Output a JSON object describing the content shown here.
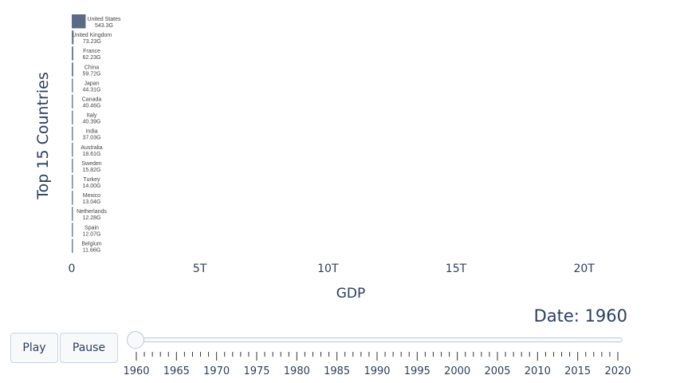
{
  "chart_data": {
    "type": "bar",
    "orientation": "horizontal",
    "ylabel": "Top 15 Countries",
    "xlabel": "GDP",
    "x_ticks": [
      "0",
      "5T",
      "10T",
      "15T",
      "20T"
    ],
    "x_tick_values": [
      0,
      5000,
      10000,
      15000,
      20000
    ],
    "xlim": [
      0,
      21100
    ],
    "value_unit": "billions USD",
    "categories": [
      "United States",
      "United Kingdom",
      "France",
      "China",
      "Japan",
      "Canada",
      "Italy",
      "India",
      "Australia",
      "Sweden",
      "Turkey",
      "Mexico",
      "Netherlands",
      "Spain",
      "Belgium"
    ],
    "values": [
      543.3,
      73.23,
      62.23,
      59.72,
      44.31,
      40.46,
      40.39,
      37.03,
      18.61,
      15.82,
      14.0,
      13.04,
      12.28,
      12.07,
      11.66
    ],
    "value_labels": [
      "543.3G",
      "73.23G",
      "62.23G",
      "59.72G",
      "44.31G",
      "40.46G",
      "40.39G",
      "37.03G",
      "18.61G",
      "15.82G",
      "14.00G",
      "13.04G",
      "12.28G",
      "12.07G",
      "11.66G"
    ],
    "bar_color": "#5a6b85",
    "grid": false,
    "legend": "none"
  },
  "animation": {
    "current_label": "Date: 1960",
    "current_year": 1960,
    "play_label": "Play",
    "pause_label": "Pause",
    "year_start": 1960,
    "year_end": 2020,
    "major_labels": [
      "1960",
      "1965",
      "1970",
      "1975",
      "1980",
      "1985",
      "1990",
      "1995",
      "2000",
      "2005",
      "2010",
      "2015",
      "2020"
    ]
  }
}
